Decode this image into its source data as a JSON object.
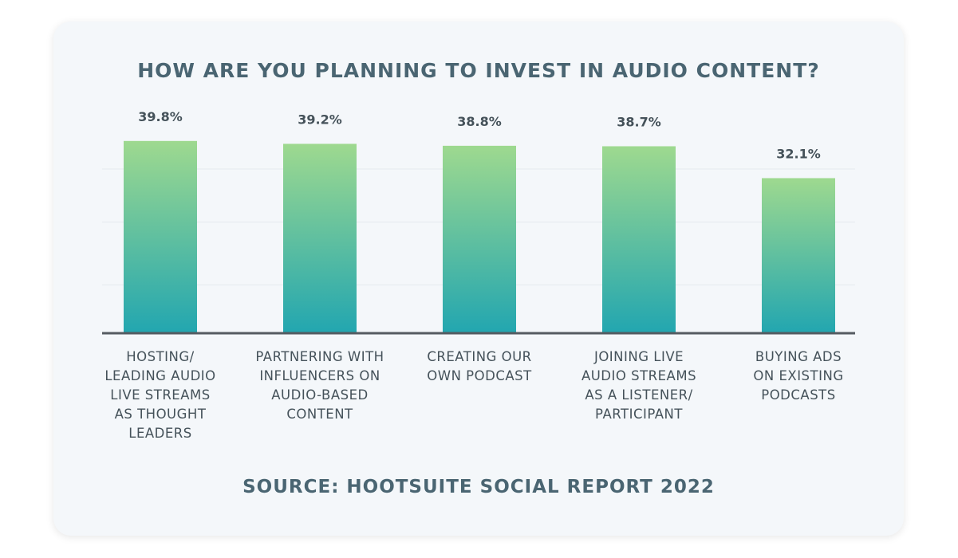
{
  "title": "HOW ARE YOU PLANNING TO INVEST IN AUDIO CONTENT?",
  "source": "SOURCE: HOOTSUITE SOCIAL REPORT 2022",
  "colors": {
    "bar_top": "#9ed98f",
    "bar_bottom": "#22a6b0",
    "axis": "#555b61",
    "gridline": "#e4e9ee",
    "text": "#45525a",
    "title": "#4a6572",
    "card": "#f4f7fa"
  },
  "chart_data": {
    "type": "bar",
    "title": "HOW ARE YOU PLANNING TO INVEST IN AUDIO CONTENT?",
    "categories": [
      "HOSTING/ LEADING AUDIO LIVE STREAMS AS THOUGHT LEADERS",
      "PARTNERING WITH INFLUENCERS ON AUDIO-BASED CONTENT",
      "CREATING OUR OWN PODCAST",
      "JOINING LIVE AUDIO STREAMS AS A LISTENER/ PARTICIPANT",
      "BUYING ADS ON EXISTING PODCASTS"
    ],
    "category_lines": [
      [
        "HOSTING/",
        "LEADING AUDIO",
        "LIVE STREAMS",
        "AS THOUGHT",
        "LEADERS"
      ],
      [
        "PARTNERING WITH",
        "INFLUENCERS ON",
        "AUDIO-BASED",
        "CONTENT"
      ],
      [
        "CREATING OUR",
        "OWN PODCAST"
      ],
      [
        "JOINING LIVE",
        "AUDIO STREAMS",
        "AS A LISTENER/",
        "PARTICIPANT"
      ],
      [
        "BUYING ADS",
        "ON EXISTING",
        "PODCASTS"
      ]
    ],
    "values": [
      39.8,
      39.2,
      38.8,
      38.7,
      32.1
    ],
    "value_labels": [
      "39.8%",
      "39.2%",
      "38.8%",
      "38.7%",
      "32.1%"
    ],
    "unit": "%",
    "xlabel": "",
    "ylabel": "",
    "grid": true
  }
}
